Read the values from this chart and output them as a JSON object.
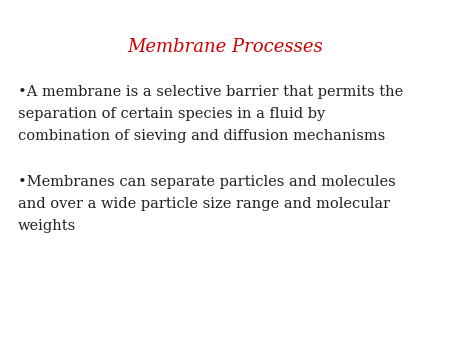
{
  "title": "Membrane Processes",
  "title_color": "#cc0000",
  "title_fontsize": 13,
  "background_color": "#ffffff",
  "bullet1_line1": "•A membrane is a selective barrier that permits the",
  "bullet1_line2": "separation of certain species in a fluid by",
  "bullet1_line3": "combination of sieving and diffusion mechanisms",
  "bullet2_line1": "•Membranes can separate particles and molecules",
  "bullet2_line2": "and over a wide particle size range and molecular",
  "bullet2_line3": "weights",
  "text_color": "#222222",
  "text_fontsize": 10.5,
  "font_family": "DejaVu Serif",
  "title_color_note": "red italic-like serif font"
}
